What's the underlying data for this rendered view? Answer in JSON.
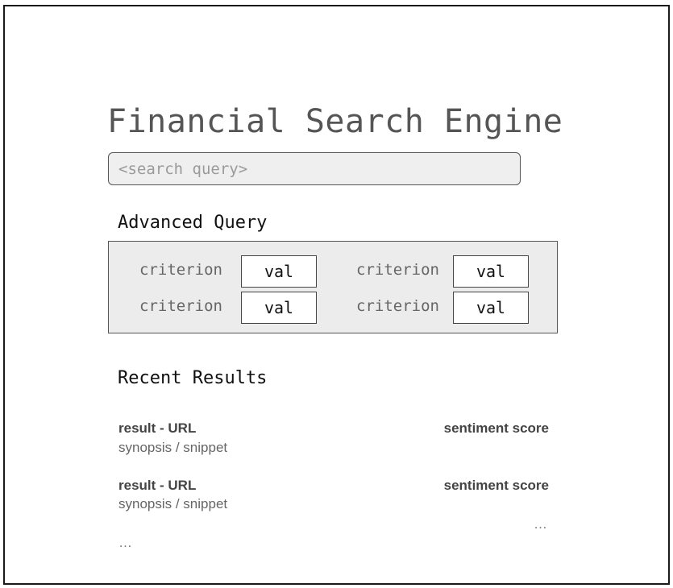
{
  "page": {
    "title": "Financial Search Engine"
  },
  "search": {
    "placeholder": "<search query>",
    "value": ""
  },
  "advanced_query": {
    "heading": "Advanced Query",
    "criteria": [
      {
        "label": "criterion",
        "value": "val"
      },
      {
        "label": "criterion",
        "value": "val"
      },
      {
        "label": "criterion",
        "value": "val"
      },
      {
        "label": "criterion",
        "value": "val"
      }
    ]
  },
  "recent_results": {
    "heading": "Recent Results",
    "items": [
      {
        "url": "result - URL",
        "snippet": "synopsis / snippet",
        "sentiment": "sentiment score"
      },
      {
        "url": "result - URL",
        "snippet": "synopsis / snippet",
        "sentiment": "sentiment score"
      }
    ],
    "more_sentiment": "…",
    "more_results": "…"
  }
}
